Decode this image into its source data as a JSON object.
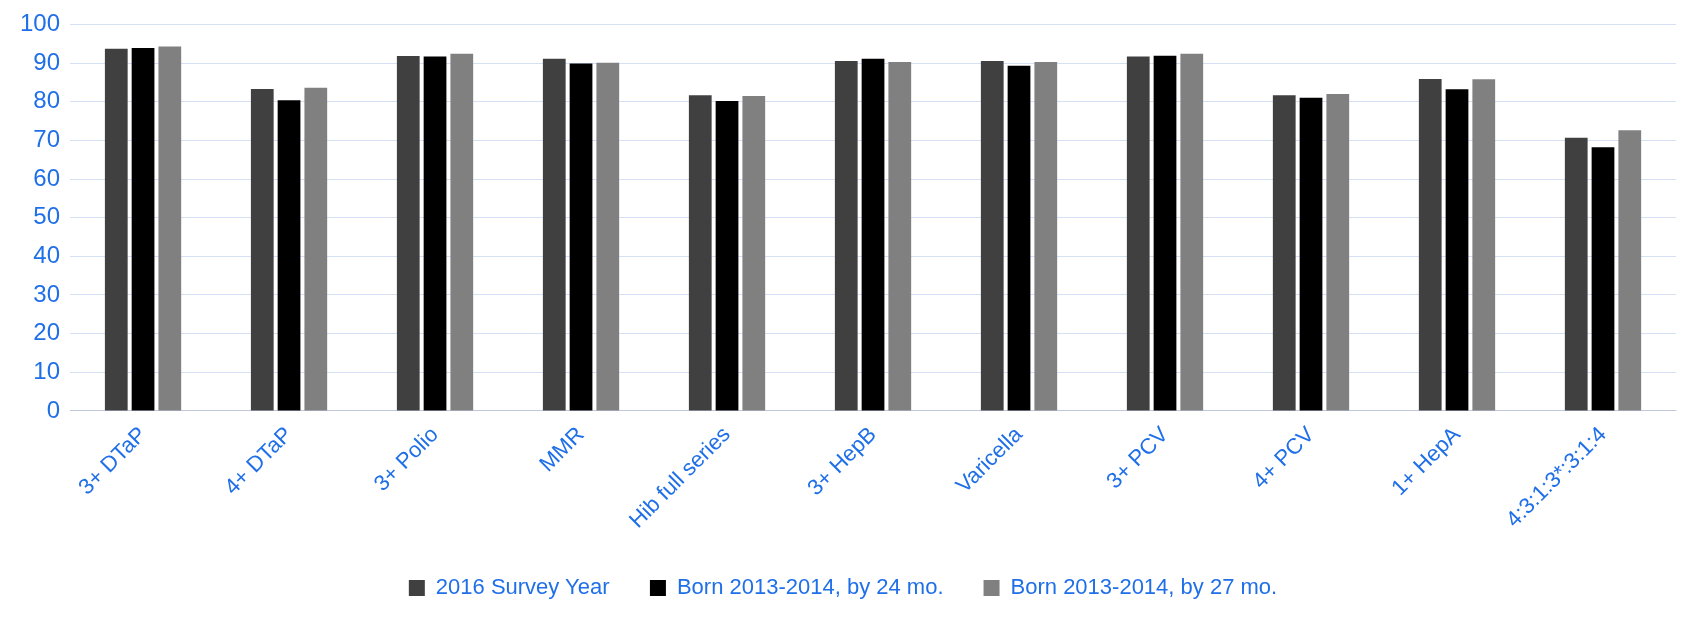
{
  "chart_data": {
    "type": "bar",
    "categories": [
      "3+ DTaP",
      "4+ DTaP",
      "3+ Polio",
      "MMR",
      "Hib full series",
      "3+ HepB",
      "Varicella",
      "3+ PCV",
      "4+ PCV",
      "1+ HepA",
      "4:3:1:3*:3:1:4"
    ],
    "series": [
      {
        "name": "2016 Survey Year",
        "color": "#404040",
        "values": [
          93.7,
          83.3,
          91.8,
          91.1,
          81.7,
          90.5,
          90.5,
          91.7,
          81.7,
          85.9,
          70.7
        ]
      },
      {
        "name": "Born 2013-2014, by 24 mo.",
        "color": "#000000",
        "values": [
          93.9,
          80.4,
          91.7,
          89.9,
          80.2,
          91.1,
          89.3,
          91.9,
          81.0,
          83.2,
          68.2
        ]
      },
      {
        "name": "Born 2013-2014, by 27 mo.",
        "color": "#808080",
        "values": [
          94.3,
          83.6,
          92.4,
          90.1,
          81.5,
          90.3,
          90.3,
          92.4,
          82.0,
          85.8,
          72.6
        ]
      }
    ],
    "ylim": [
      0,
      100
    ],
    "yticks": [
      0,
      10,
      20,
      30,
      40,
      50,
      60,
      70,
      80,
      90,
      100
    ],
    "grid": "y",
    "legend": "bottom"
  }
}
